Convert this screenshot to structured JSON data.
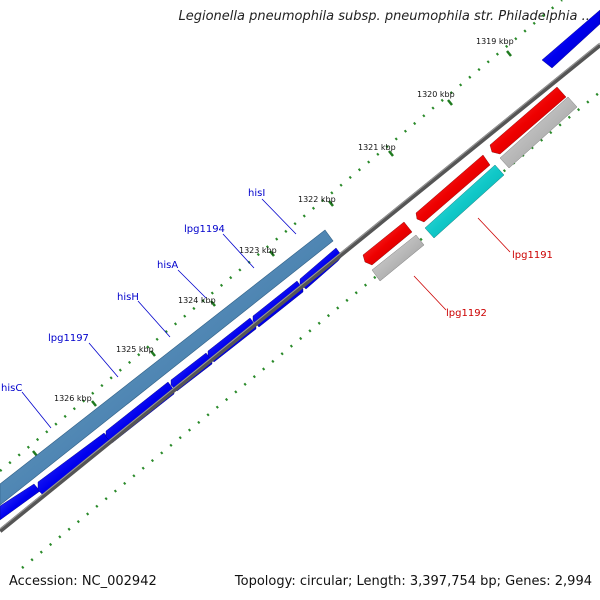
{
  "title": "Legionella pneumophila subsp. pneumophila str. Philadelphia ...",
  "footer": {
    "accession": "Accession: NC_002942",
    "topology": "Topology: circular; Length: 3,397,754 bp; Genes: 2,994"
  },
  "ticks": [
    "1319 kbp",
    "1320 kbp",
    "1321 kbp",
    "1322 kbp",
    "1323 kbp",
    "1324 kbp",
    "1325 kbp",
    "1326 kbp"
  ],
  "gene_labels": [
    {
      "name": "hisI",
      "color": "#0000cc"
    },
    {
      "name": "lpg1194",
      "color": "#0000cc"
    },
    {
      "name": "hisA",
      "color": "#0000cc"
    },
    {
      "name": "hisH",
      "color": "#0000cc"
    },
    {
      "name": "lpg1197",
      "color": "#0000cc"
    },
    {
      "name": "hisC",
      "color": "#0000cc"
    },
    {
      "name": "lpg1191",
      "color": "#cc0000"
    },
    {
      "name": "lpg1192",
      "color": "#cc0000"
    }
  ],
  "colors": {
    "forward_gene": "#0000ee",
    "reverse_gene": "#ee0000",
    "operon": "#4f86b3",
    "backbone": "#777777",
    "dots": "#2a8a2a",
    "cyan_feature": "#10c8c8",
    "grey_feature": "#b8b8b8"
  }
}
